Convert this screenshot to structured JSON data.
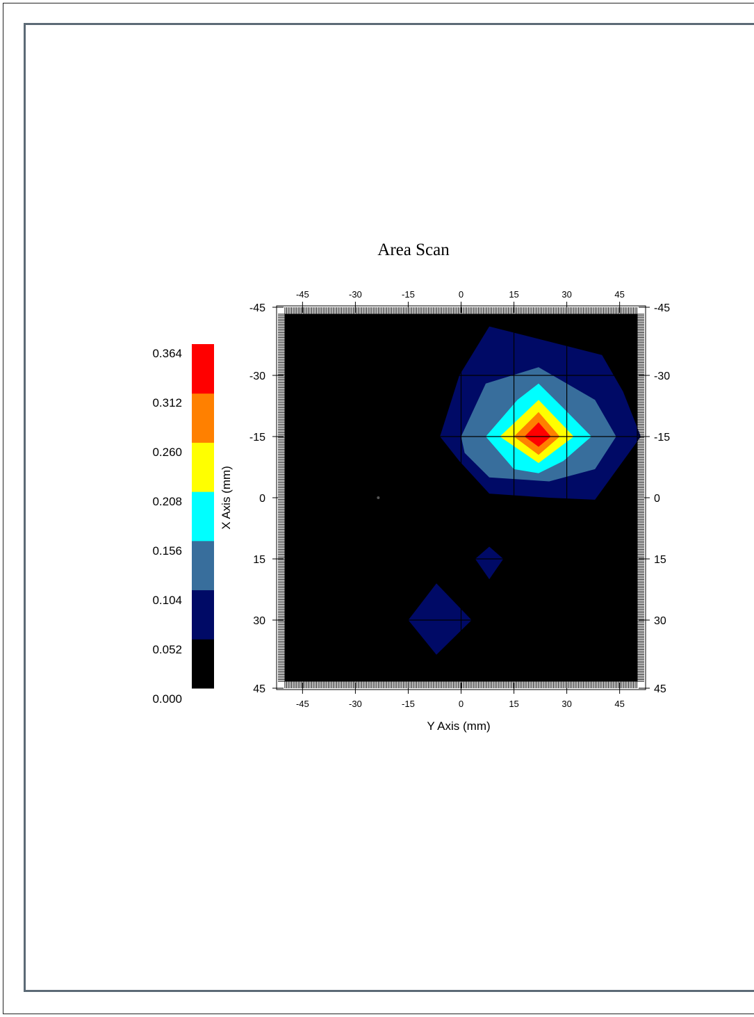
{
  "chart_data": {
    "type": "heatmap",
    "subtype": "filled-contour",
    "title": "Area Scan",
    "xlabel": "Y Axis (mm)",
    "ylabel": "X Axis (mm)",
    "x_axis": {
      "min": -50,
      "max": 50,
      "ticks": [
        -45,
        -30,
        -15,
        0,
        15,
        30,
        45
      ],
      "tick_labels": [
        "-45",
        "-30",
        "-15",
        "0",
        "15",
        "30",
        "45"
      ]
    },
    "y_axis": {
      "min": -45,
      "max": 45,
      "inverted": true,
      "ticks": [
        -45,
        -30,
        -15,
        0,
        15,
        30,
        45
      ],
      "tick_labels": [
        "-45",
        "-30",
        "-15",
        "0",
        "15",
        "30",
        "45"
      ]
    },
    "grid": true,
    "grid_lines": {
      "x": [
        0,
        15,
        30
      ],
      "y": [
        -30,
        -15
      ]
    },
    "colorbar": {
      "placement": "left",
      "levels": [
        0.0,
        0.052,
        0.104,
        0.156,
        0.208,
        0.26,
        0.312,
        0.364
      ],
      "labels": [
        "0.000",
        "0.052",
        "0.104",
        "0.156",
        "0.208",
        "0.260",
        "0.312",
        "0.364"
      ],
      "colors": [
        "#000000",
        "#000a66",
        "#386e9c",
        "#00ffff",
        "#ffff00",
        "#ff8000",
        "#ff0000"
      ]
    },
    "background_color": "#000000",
    "contours": [
      {
        "level": 0.052,
        "color": "#000a66",
        "points": [
          [
            -6,
            -15
          ],
          [
            -0.5,
            -30
          ],
          [
            8,
            -42
          ],
          [
            40,
            -35
          ],
          [
            46,
            -26
          ],
          [
            51,
            -15
          ],
          [
            38,
            0.5
          ],
          [
            25,
            0
          ],
          [
            8,
            -1
          ],
          [
            -0.5,
            -9
          ]
        ]
      },
      {
        "level": 0.104,
        "color": "#386e9c",
        "points": [
          [
            0,
            -15
          ],
          [
            7,
            -28
          ],
          [
            22,
            -32
          ],
          [
            30,
            -28
          ],
          [
            38,
            -24
          ],
          [
            44,
            -15
          ],
          [
            38,
            -7
          ],
          [
            25,
            -4
          ],
          [
            8,
            -5
          ],
          [
            1,
            -11
          ]
        ]
      },
      {
        "level": 0.156,
        "color": "#00ffff",
        "points": [
          [
            7,
            -15
          ],
          [
            16,
            -24
          ],
          [
            22,
            -28
          ],
          [
            29,
            -22
          ],
          [
            37,
            -15
          ],
          [
            29,
            -9
          ],
          [
            22,
            -6
          ],
          [
            15,
            -7
          ]
        ]
      },
      {
        "level": 0.208,
        "color": "#ffff00",
        "points": [
          [
            11,
            -15
          ],
          [
            22,
            -24
          ],
          [
            32,
            -15
          ],
          [
            22,
            -8.5
          ]
        ]
      },
      {
        "level": 0.26,
        "color": "#ff8000",
        "points": [
          [
            15,
            -15
          ],
          [
            22,
            -21
          ],
          [
            28,
            -15
          ],
          [
            22,
            -10.5
          ]
        ]
      },
      {
        "level": 0.312,
        "color": "#ff0000",
        "points": [
          [
            18,
            -15
          ],
          [
            22,
            -18.5
          ],
          [
            25.5,
            -15
          ],
          [
            22,
            -12.5
          ]
        ]
      },
      {
        "level": 0.052,
        "color": "#000a66",
        "points": [
          [
            4,
            15
          ],
          [
            8,
            12
          ],
          [
            12,
            15
          ],
          [
            8,
            20
          ]
        ]
      },
      {
        "level": 0.052,
        "color": "#000a66",
        "points": [
          [
            -15,
            30
          ],
          [
            -7,
            21
          ],
          [
            3,
            30
          ],
          [
            -7,
            38.5
          ]
        ]
      }
    ],
    "center_marker": {
      "x": -23.5,
      "y": 0
    }
  }
}
